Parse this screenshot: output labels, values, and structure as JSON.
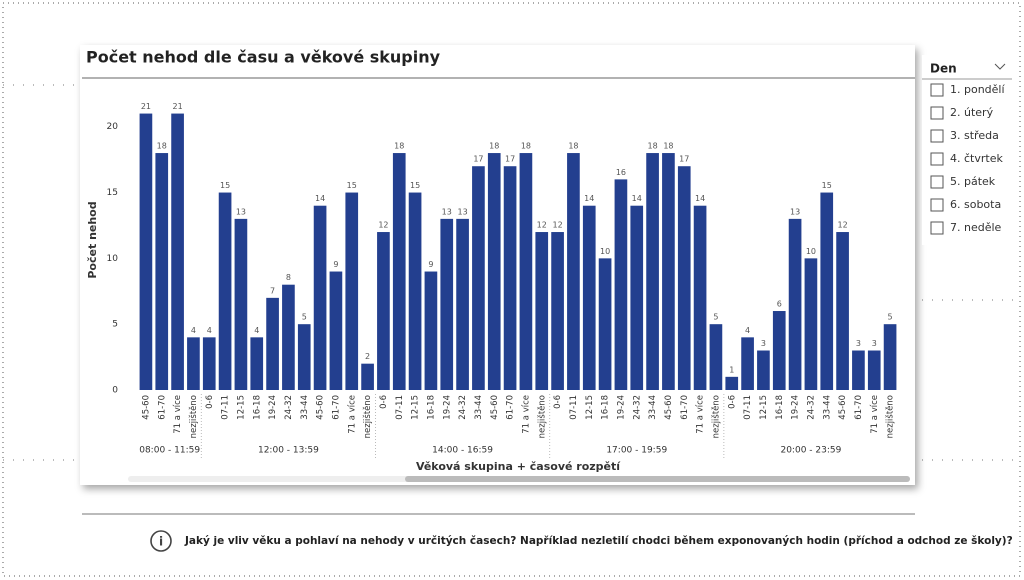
{
  "chart_data": {
    "type": "bar",
    "title": "Počet nehod dle času a věkové skupiny",
    "y_label": "Počet nehod",
    "x_label": "Věková skupina + časové rozpětí",
    "color": "#233f8f",
    "ylim": [
      0,
      22
    ],
    "yticks": [
      0,
      5,
      10,
      15,
      20
    ],
    "grid": false,
    "groups": [
      {
        "label": "08:00 - 11:59",
        "categories": [
          "45-60",
          "61-70",
          "71 a více",
          "nezjištěno"
        ],
        "values": [
          21,
          18,
          21,
          4
        ]
      },
      {
        "label": "12:00 - 13:59",
        "categories": [
          "0-6",
          "07-11",
          "12-15",
          "16-18",
          "19-24",
          "24-32",
          "33-44",
          "45-60",
          "61-70",
          "71 a více",
          "nezjištěno"
        ],
        "values": [
          4,
          15,
          13,
          4,
          7,
          8,
          5,
          14,
          9,
          15,
          2
        ]
      },
      {
        "label": "14:00 - 16:59",
        "categories": [
          "0-6",
          "07-11",
          "12-15",
          "16-18",
          "19-24",
          "24-32",
          "33-44",
          "45-60",
          "61-70",
          "71 a více",
          "nezjištěno"
        ],
        "values": [
          12,
          18,
          15,
          9,
          13,
          13,
          17,
          18,
          17,
          18,
          12
        ]
      },
      {
        "label": "17:00 - 19:59",
        "categories": [
          "0-6",
          "07-11",
          "12-15",
          "16-18",
          "19-24",
          "24-32",
          "33-44",
          "45-60",
          "61-70",
          "71 a více",
          "nezjištěno"
        ],
        "values": [
          12,
          18,
          14,
          10,
          16,
          14,
          18,
          18,
          17,
          14,
          5
        ]
      },
      {
        "label": "20:00 - 23:59",
        "categories": [
          "0-6",
          "07-11",
          "12-15",
          "16-18",
          "19-24",
          "24-32",
          "33-44",
          "45-60",
          "61-70",
          "71 a více",
          "nezjištěno"
        ],
        "values": [
          1,
          4,
          3,
          6,
          13,
          10,
          15,
          12,
          3,
          3,
          5
        ]
      }
    ]
  },
  "slicer": {
    "title": "Den",
    "items": [
      "1. pondělí",
      "2. úterý",
      "3. středa",
      "4. čtvrtek",
      "5. pátek",
      "6. sobota",
      "7. neděle"
    ]
  },
  "footer": {
    "question": "Jaký je vliv věku a pohlaví na nehody v určitých časech? Například nezletilí chodci během exponovaných hodin (příchod a odchod ze školy)?"
  }
}
